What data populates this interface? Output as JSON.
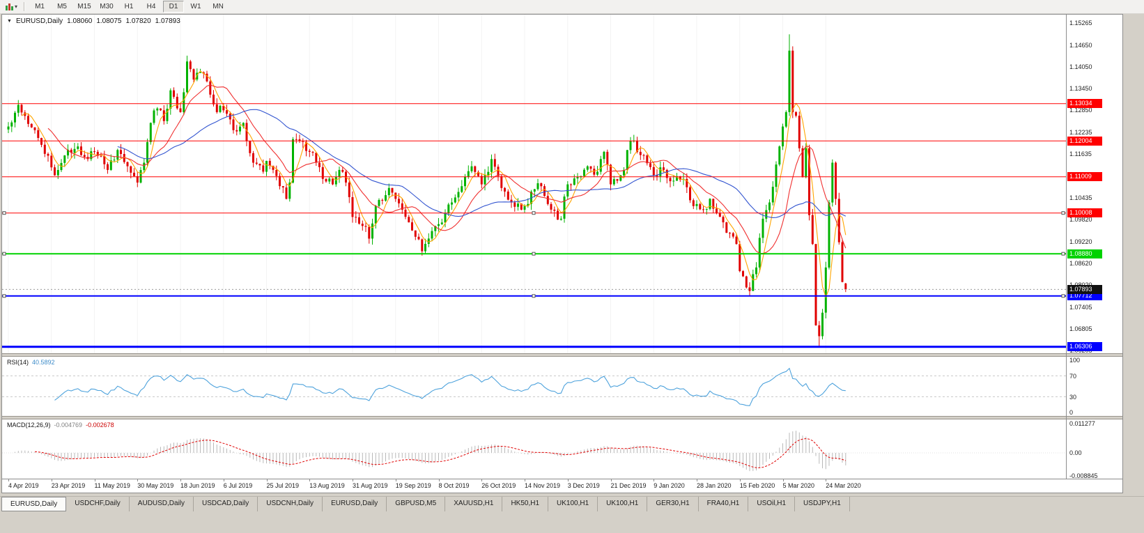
{
  "toolbar": {
    "timeframes": [
      "M1",
      "M5",
      "M15",
      "M30",
      "H1",
      "H4",
      "D1",
      "W1",
      "MN"
    ],
    "active_timeframe": "D1"
  },
  "header": {
    "symbol": "EURUSD,Daily",
    "open": "1.08060",
    "high": "1.08075",
    "low": "1.07820",
    "close": "1.07893"
  },
  "rsi_panel": {
    "name": "RSI(14)",
    "value": "40.5892",
    "scale": [
      {
        "text": "100",
        "value": 100
      },
      {
        "text": "70",
        "value": 70
      },
      {
        "text": "30",
        "value": 30
      },
      {
        "text": "0",
        "value": 0
      }
    ],
    "level_lines": [
      70,
      30
    ],
    "line_color": "#4DA2DC"
  },
  "macd_panel": {
    "name": "MACD(12,26,9)",
    "value_main": "-0.004769",
    "value_signal": "-0.002678",
    "scale": [
      {
        "text": "0.011277",
        "value": 0.011277
      },
      {
        "text": "0.00",
        "value": 0
      },
      {
        "text": "-0.008845",
        "value": -0.008845
      }
    ],
    "histogram_color": "#B8B8B8",
    "signal_color": "#E00000"
  },
  "tabs_bar": {
    "tabs": [
      {
        "label": "EURUSD,Daily",
        "active": true
      },
      {
        "label": "USDCHF,Daily"
      },
      {
        "label": "AUDUSD,Daily"
      },
      {
        "label": "USDCAD,Daily"
      },
      {
        "label": "USDCNH,Daily"
      },
      {
        "label": "EURUSD,Daily"
      },
      {
        "label": "GBPUSD,M5"
      },
      {
        "label": "XAUUSD,H1"
      },
      {
        "label": "HK50,H1"
      },
      {
        "label": "UK100,H1"
      },
      {
        "label": "UK100,H1"
      },
      {
        "label": "GER30,H1"
      },
      {
        "label": "FRA40,H1"
      },
      {
        "label": "USOil,H1"
      },
      {
        "label": "USDJPY,H1"
      }
    ]
  },
  "chart_data": {
    "type": "candlestick",
    "symbol": "EURUSD",
    "timeframe": "D1",
    "current_ohlc": {
      "open": 1.0806,
      "high": 1.08075,
      "low": 1.0782,
      "close": 1.07893
    },
    "current_price": 1.07893,
    "y_range": [
      1.06205,
      1.15265
    ],
    "price_ticks": [
      1.15265,
      1.1465,
      1.1405,
      1.1345,
      1.1285,
      1.12235,
      1.11635,
      1.11035,
      1.10435,
      1.0982,
      1.0922,
      1.0862,
      1.0802,
      1.07405,
      1.06805,
      1.06205
    ],
    "x_axis_dates": [
      "4 Apr 2019",
      "23 Apr 2019",
      "11 May 2019",
      "30 May 2019",
      "18 Jun 2019",
      "6 Jul 2019",
      "25 Jul 2019",
      "13 Aug 2019",
      "31 Aug 2019",
      "19 Sep 2019",
      "8 Oct 2019",
      "26 Oct 2019",
      "14 Nov 2019",
      "3 Dec 2019",
      "21 Dec 2019",
      "9 Jan 2020",
      "28 Jan 2020",
      "15 Feb 2020",
      "5 Mar 2020",
      "24 Mar 2020"
    ],
    "candles_per_label": 13,
    "candle_up_color": "#00B200",
    "candle_down_color": "#E00000",
    "moving_averages": [
      {
        "period": 5,
        "color": "#FFA500"
      },
      {
        "period": 13,
        "color": "#F03030"
      },
      {
        "period": 34,
        "color": "#3355D0"
      }
    ],
    "horizontal_lines": [
      {
        "price": 1.13034,
        "color": "#FF0000",
        "width": 1
      },
      {
        "price": 1.12004,
        "color": "#FF0000",
        "width": 1
      },
      {
        "price": 1.11009,
        "color": "#FF0000",
        "width": 1
      },
      {
        "price": 1.10008,
        "color": "#FF0000",
        "width": 1,
        "handles": true
      },
      {
        "price": 1.0888,
        "color": "#00D200",
        "width": 2,
        "handles": true
      },
      {
        "price": 1.07712,
        "color": "#0000FF",
        "width": 2,
        "handles": true
      },
      {
        "price": 1.06306,
        "color": "#0000FF",
        "width": 3
      }
    ],
    "close_anchors": [
      [
        0,
        1.124
      ],
      [
        3,
        1.13
      ],
      [
        8,
        1.123
      ],
      [
        14,
        1.1105
      ],
      [
        17,
        1.116
      ],
      [
        21,
        1.1185
      ],
      [
        24,
        1.115
      ],
      [
        26,
        1.117
      ],
      [
        30,
        1.112
      ],
      [
        33,
        1.1175
      ],
      [
        36,
        1.113
      ],
      [
        39,
        1.1085
      ],
      [
        41,
        1.114
      ],
      [
        43,
        1.125
      ],
      [
        45,
        1.129
      ],
      [
        47,
        1.1255
      ],
      [
        49,
        1.134
      ],
      [
        52,
        1.128
      ],
      [
        54,
        1.142
      ],
      [
        56,
        1.137
      ],
      [
        58,
        1.139
      ],
      [
        60,
        1.1365
      ],
      [
        63,
        1.128
      ],
      [
        65,
        1.1285
      ],
      [
        68,
        1.123
      ],
      [
        71,
        1.125
      ],
      [
        74,
        1.114
      ],
      [
        77,
        1.1115
      ],
      [
        78,
        1.1145
      ],
      [
        80,
        1.112
      ],
      [
        82,
        1.1075
      ],
      [
        84,
        1.104
      ],
      [
        85,
        1.1085
      ],
      [
        86,
        1.1205
      ],
      [
        88,
        1.12
      ],
      [
        91,
        1.117
      ],
      [
        93,
        1.114
      ],
      [
        95,
        1.1095
      ],
      [
        98,
        1.108
      ],
      [
        100,
        1.112
      ],
      [
        102,
        1.1085
      ],
      [
        104,
        1.099
      ],
      [
        107,
        1.0965
      ],
      [
        109,
        1.093
      ],
      [
        111,
        1.102
      ],
      [
        113,
        1.1035
      ],
      [
        115,
        1.107
      ],
      [
        117,
        1.104
      ],
      [
        119,
        1.101
      ],
      [
        121,
        1.0975
      ],
      [
        123,
        1.0935
      ],
      [
        125,
        1.0895
      ],
      [
        127,
        1.093
      ],
      [
        129,
        1.0965
      ],
      [
        130,
        1.097
      ],
      [
        132,
        1.1
      ],
      [
        134,
        1.103
      ],
      [
        137,
        1.1075
      ],
      [
        140,
        1.113
      ],
      [
        143,
        1.108
      ],
      [
        146,
        1.115
      ],
      [
        149,
        1.107
      ],
      [
        152,
        1.103
      ],
      [
        155,
        1.101
      ],
      [
        156,
        1.102
      ],
      [
        158,
        1.106
      ],
      [
        161,
        1.1075
      ],
      [
        164,
        1.101
      ],
      [
        167,
        1.0985
      ],
      [
        169,
        1.108
      ],
      [
        172,
        1.11
      ],
      [
        175,
        1.113
      ],
      [
        178,
        1.1115
      ],
      [
        180,
        1.117
      ],
      [
        182,
        1.108
      ],
      [
        184,
        1.109
      ],
      [
        186,
        1.112
      ],
      [
        188,
        1.12
      ],
      [
        190,
        1.117
      ],
      [
        192,
        1.116
      ],
      [
        195,
        1.1105
      ],
      [
        198,
        1.112
      ],
      [
        201,
        1.109
      ],
      [
        204,
        1.1095
      ],
      [
        207,
        1.102
      ],
      [
        210,
        1.101
      ],
      [
        212,
        1.104
      ],
      [
        214,
        1.1
      ],
      [
        216,
        1.0975
      ],
      [
        218,
        1.0945
      ],
      [
        220,
        1.0915
      ],
      [
        221,
        1.084
      ],
      [
        223,
        1.0795
      ],
      [
        224,
        1.0785
      ],
      [
        226,
        1.085
      ],
      [
        228,
        1.0985
      ],
      [
        230,
        1.103
      ],
      [
        232,
        1.1135
      ],
      [
        234,
        1.124
      ],
      [
        235,
        1.128
      ],
      [
        236,
        1.145
      ],
      [
        237,
        1.128
      ],
      [
        238,
        1.127
      ],
      [
        239,
        1.118
      ],
      [
        240,
        1.11
      ],
      [
        241,
        1.118
      ],
      [
        242,
        1.0995
      ],
      [
        243,
        1.0915
      ],
      [
        244,
        1.069
      ],
      [
        245,
        1.066
      ],
      [
        246,
        1.0725
      ],
      [
        247,
        1.085
      ],
      [
        248,
        1.103
      ],
      [
        249,
        1.114
      ],
      [
        250,
        1.104
      ],
      [
        251,
        1.092
      ],
      [
        252,
        1.081
      ],
      [
        253,
        1.07893
      ]
    ],
    "candle_overrides": [
      {
        "i": 236,
        "high": 1.1495
      },
      {
        "i": 245,
        "low": 1.063
      },
      {
        "i": 253,
        "open": 1.0806,
        "high": 1.08075,
        "low": 1.0782,
        "close": 1.07893
      }
    ],
    "indicators": {
      "rsi": {
        "period": 14,
        "current": 40.5892
      },
      "macd": {
        "fast": 12,
        "slow": 26,
        "signal": 9,
        "current_main": -0.004769,
        "current_signal": -0.002678
      }
    }
  }
}
